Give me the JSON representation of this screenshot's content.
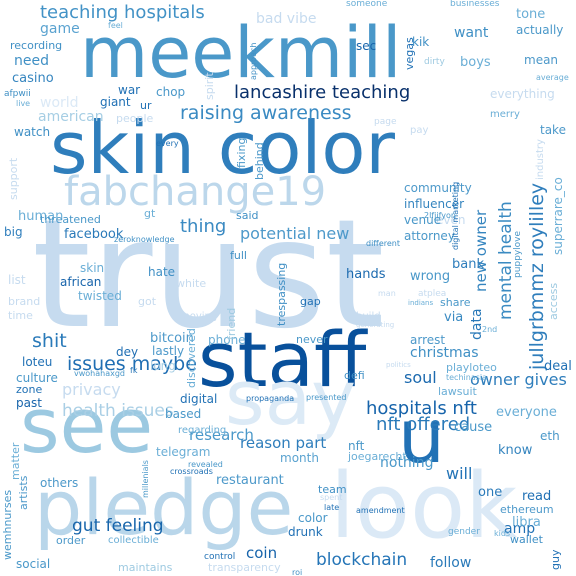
{
  "words": [
    {
      "text": "trust",
      "color": "#c6dbef"
    },
    {
      "text": "meekmill",
      "color": "#4a98c9"
    },
    {
      "text": "skin color",
      "color": "#2f7ebc"
    },
    {
      "text": "staff",
      "color": "#08509b"
    },
    {
      "text": "see",
      "color": "#9cc9e1"
    },
    {
      "text": "pledge",
      "color": "#b9d6ea"
    },
    {
      "text": "look",
      "color": "#dbe9f6"
    },
    {
      "text": "say",
      "color": "#dceaf6"
    },
    {
      "text": "u",
      "color": "#2171b5"
    },
    {
      "text": "fabchange19",
      "color": "#bcd7eb"
    },
    {
      "text": "lancashire teaching",
      "color": "#08306b"
    },
    {
      "text": "teaching hospitals",
      "color": "#4292c6"
    },
    {
      "text": "raising awareness",
      "color": "#3a8ac2"
    },
    {
      "text": "hospitals nft",
      "color": "#1764ab"
    },
    {
      "text": "nft offered",
      "color": "#2a7ab9"
    },
    {
      "text": "blockchain",
      "color": "#2575b7"
    },
    {
      "text": "jullgrbmmz roylilley",
      "color": "#2f7ebc"
    },
    {
      "text": "mental health",
      "color": "#3b8bc2"
    },
    {
      "text": "issues maybe",
      "color": "#1f6eb3"
    },
    {
      "text": "health issues",
      "color": "#aacfe5"
    },
    {
      "text": "gut feeling",
      "color": "#1765ab"
    },
    {
      "text": "shit",
      "color": "#2a7ab9"
    },
    {
      "text": "thing",
      "color": "#3a8ac2"
    },
    {
      "text": "potential new",
      "color": "#4d99ca"
    },
    {
      "text": "soul",
      "color": "#1c6aaf"
    },
    {
      "text": "owner gives",
      "color": "#2f7ebc"
    },
    {
      "text": "new owner",
      "color": "#3585bf"
    },
    {
      "text": "data",
      "color": "#2878b8"
    },
    {
      "text": "christmas",
      "color": "#4090c5"
    },
    {
      "text": "privacy",
      "color": "#c6dbef"
    },
    {
      "text": "research",
      "color": "#4a98c9"
    },
    {
      "text": "reason part",
      "color": "#2f7ebc"
    },
    {
      "text": "will",
      "color": "#2474b7"
    },
    {
      "text": "restaurant",
      "color": "#4d99ca"
    },
    {
      "text": "coin",
      "color": "#1764ab"
    },
    {
      "text": "follow",
      "color": "#2a7ab9"
    },
    {
      "text": "amp",
      "color": "#2171b5"
    },
    {
      "text": "nothing",
      "color": "#4a98c9"
    },
    {
      "text": "game",
      "color": "#5ba3d0"
    },
    {
      "text": "need",
      "color": "#4090c5"
    },
    {
      "text": "casino",
      "color": "#3585bf"
    },
    {
      "text": "american",
      "color": "#a6cee4"
    },
    {
      "text": "human",
      "color": "#6aaed6"
    },
    {
      "text": "facebook",
      "color": "#2a7ab9"
    },
    {
      "text": "threatened",
      "color": "#4a98c9"
    },
    {
      "text": "bitcoin",
      "color": "#4d99ca"
    },
    {
      "text": "phone",
      "color": "#6aaed6"
    },
    {
      "text": "people",
      "color": "#c6dbef"
    },
    {
      "text": "influencer",
      "color": "#3585bf"
    },
    {
      "text": "attorney",
      "color": "#4a98c9"
    },
    {
      "text": "bank",
      "color": "#2f7ebc"
    },
    {
      "text": "wrong",
      "color": "#4a98c9"
    },
    {
      "text": "hands",
      "color": "#1c6aaf"
    },
    {
      "text": "via",
      "color": "#3a8ac2"
    },
    {
      "text": "arrest",
      "color": "#4d99ca"
    },
    {
      "text": "deal",
      "color": "#2171b5"
    },
    {
      "text": "everyone",
      "color": "#6aaed6"
    },
    {
      "text": "cause",
      "color": "#4a98c9"
    },
    {
      "text": "know",
      "color": "#3585bf"
    },
    {
      "text": "eth",
      "color": "#4a98c9"
    },
    {
      "text": "read",
      "color": "#2171b5"
    },
    {
      "text": "ethereum",
      "color": "#4d99ca"
    },
    {
      "text": "libra",
      "color": "#6aaed6"
    },
    {
      "text": "wallet",
      "color": "#4090c5"
    },
    {
      "text": "one",
      "color": "#2a7ab9"
    },
    {
      "text": "nft",
      "color": "#4a98c9"
    },
    {
      "text": "joegarecht",
      "color": "#6aaed6"
    },
    {
      "text": "month",
      "color": "#5ba3d0"
    },
    {
      "text": "telegram",
      "color": "#6aaed6"
    },
    {
      "text": "based",
      "color": "#4a98c9"
    },
    {
      "text": "regarding",
      "color": "#6aaed6"
    },
    {
      "text": "others",
      "color": "#4d99ca"
    },
    {
      "text": "order",
      "color": "#4d99ca"
    },
    {
      "text": "social",
      "color": "#4a98c9"
    },
    {
      "text": "maintains",
      "color": "#9ecae1"
    },
    {
      "text": "collectible",
      "color": "#6aaed6"
    },
    {
      "text": "drunk",
      "color": "#2171b5"
    },
    {
      "text": "color",
      "color": "#4a98c9"
    },
    {
      "text": "team",
      "color": "#4090c5"
    },
    {
      "text": "lawsuit",
      "color": "#6aaed6"
    },
    {
      "text": "digital",
      "color": "#2171b5"
    },
    {
      "text": "dey",
      "color": "#1f6eb3"
    },
    {
      "text": "lastly",
      "color": "#4d99ca"
    },
    {
      "text": "long",
      "color": "#a6cee4"
    },
    {
      "text": "loteu",
      "color": "#2171b5"
    },
    {
      "text": "culture",
      "color": "#4a98c9"
    },
    {
      "text": "zone",
      "color": "#2171b5"
    },
    {
      "text": "past",
      "color": "#1764ab"
    },
    {
      "text": "matter",
      "color": "#6aaed6"
    },
    {
      "text": "artists",
      "color": "#4d99ca"
    },
    {
      "text": "wemhnurses",
      "color": "#4a98c9"
    },
    {
      "text": "skin",
      "color": "#6aaed6"
    },
    {
      "text": "african",
      "color": "#1764ab"
    },
    {
      "text": "twisted",
      "color": "#6aaed6"
    },
    {
      "text": "hate",
      "color": "#4090c5"
    },
    {
      "text": "big",
      "color": "#2f7ebc"
    },
    {
      "text": "list",
      "color": "#c6dbef"
    },
    {
      "text": "brand",
      "color": "#c6dbef"
    },
    {
      "text": "time",
      "color": "#c6dbef"
    },
    {
      "text": "support",
      "color": "#c6dbef"
    },
    {
      "text": "watch",
      "color": "#4090c5"
    },
    {
      "text": "world",
      "color": "#dbe9f6"
    },
    {
      "text": "recording",
      "color": "#4090c5"
    },
    {
      "text": "war",
      "color": "#2171b5"
    },
    {
      "text": "chop",
      "color": "#4a98c9"
    },
    {
      "text": "giant",
      "color": "#2171b5"
    },
    {
      "text": "ur",
      "color": "#2171b5"
    },
    {
      "text": "spirit",
      "color": "#c6dbef"
    },
    {
      "text": "bad vibe",
      "color": "#c6dbef"
    },
    {
      "text": "sec",
      "color": "#1764ab"
    },
    {
      "text": "kik",
      "color": "#4090c5"
    },
    {
      "text": "want",
      "color": "#4090c5"
    },
    {
      "text": "boys",
      "color": "#6aaed6"
    },
    {
      "text": "vegas",
      "color": "#2171b5"
    },
    {
      "text": "dirty",
      "color": "#9ecae1"
    },
    {
      "text": "tone",
      "color": "#6aaed6"
    },
    {
      "text": "actually",
      "color": "#4a98c9"
    },
    {
      "text": "mean",
      "color": "#4d99ca"
    },
    {
      "text": "average",
      "color": "#6aaed6"
    },
    {
      "text": "everything",
      "color": "#c6dbef"
    },
    {
      "text": "merry",
      "color": "#6aaed6"
    },
    {
      "text": "take",
      "color": "#4d99ca"
    },
    {
      "text": "pay",
      "color": "#c6dbef"
    },
    {
      "text": "community",
      "color": "#4d99ca"
    },
    {
      "text": "even",
      "color": "#c6dbef"
    },
    {
      "text": "venue",
      "color": "#4a98c9"
    },
    {
      "text": "access",
      "color": "#9ecae1"
    },
    {
      "text": "superrare_co",
      "color": "#6aaed6"
    },
    {
      "text": "puppylove",
      "color": "#4a98c9"
    },
    {
      "text": "share",
      "color": "#4a98c9"
    },
    {
      "text": "2nd",
      "color": "#6aaed6"
    },
    {
      "text": "gap",
      "color": "#2171b5"
    },
    {
      "text": "trespassing",
      "color": "#4090c5"
    },
    {
      "text": "never",
      "color": "#4a98c9"
    },
    {
      "text": "defi",
      "color": "#4090c5"
    },
    {
      "text": "playloteo",
      "color": "#6aaed6"
    },
    {
      "text": "techinasia",
      "color": "#6aaed6"
    },
    {
      "text": "behind",
      "color": "#4d99ca"
    },
    {
      "text": "fixing",
      "color": "#4a98c9"
    },
    {
      "text": "said",
      "color": "#4090c5"
    },
    {
      "text": "gt",
      "color": "#6aaed6"
    },
    {
      "text": "zeroknowledge",
      "color": "#4090c5"
    },
    {
      "text": "full",
      "color": "#4090c5"
    },
    {
      "text": "friend",
      "color": "#9ecae1"
    },
    {
      "text": "discovered",
      "color": "#6aaed6"
    },
    {
      "text": "gender",
      "color": "#6aaed6"
    },
    {
      "text": "guy",
      "color": "#2171b5"
    },
    {
      "text": "kids",
      "color": "#6aaed6"
    },
    {
      "text": "amendment",
      "color": "#2171b5"
    },
    {
      "text": "late",
      "color": "#2171b5"
    },
    {
      "text": "control",
      "color": "#2171b5"
    },
    {
      "text": "roi",
      "color": "#4090c5"
    },
    {
      "text": "transparency",
      "color": "#c6dbef"
    },
    {
      "text": "crossroads",
      "color": "#2171b5"
    },
    {
      "text": "revealed",
      "color": "#4a98c9"
    },
    {
      "text": "millenials",
      "color": "#4a98c9"
    },
    {
      "text": "presented",
      "color": "#4a98c9"
    },
    {
      "text": "propaganda",
      "color": "#2171b5"
    },
    {
      "text": "vwohahaxgd",
      "color": "#4a98c9"
    },
    {
      "text": "fk",
      "color": "#2171b5"
    },
    {
      "text": "feel",
      "color": "#6aaed6"
    },
    {
      "text": "someone",
      "color": "#6aaed6"
    },
    {
      "text": "businesses",
      "color": "#6aaed6"
    },
    {
      "text": "approach",
      "color": "#4090c5"
    },
    {
      "text": "afpwii",
      "color": "#4090c5"
    },
    {
      "text": "live",
      "color": "#6aaed6"
    },
    {
      "text": "every",
      "color": "#2171b5"
    },
    {
      "text": "indians",
      "color": "#6aaed6"
    },
    {
      "text": "generating",
      "color": "#c6dbef"
    },
    {
      "text": "politics",
      "color": "#c6dbef"
    },
    {
      "text": "digital marketing",
      "color": "#2171b5"
    },
    {
      "text": "industry",
      "color": "#c6dbef"
    },
    {
      "text": "2lfjifyon",
      "color": "#4a98c9"
    },
    {
      "text": "different",
      "color": "#4090c5"
    },
    {
      "text": "build",
      "color": "#c6dbef"
    },
    {
      "text": "man",
      "color": "#c6dbef"
    },
    {
      "text": "atplea",
      "color": "#c6dbef"
    },
    {
      "text": "white",
      "color": "#c6dbef"
    },
    {
      "text": "got",
      "color": "#c6dbef"
    },
    {
      "text": "moving",
      "color": "#c6dbef"
    },
    {
      "text": "spent",
      "color": "#c6dbef"
    },
    {
      "text": "page",
      "color": "#c6dbef"
    }
  ]
}
